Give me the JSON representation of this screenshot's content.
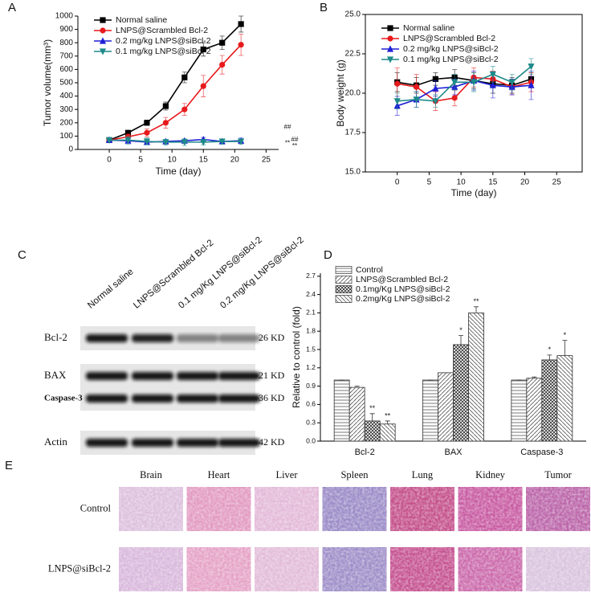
{
  "panel_labels": [
    "A",
    "B",
    "C",
    "D",
    "E"
  ],
  "chart_data": [
    {
      "type": "line",
      "x": [
        0,
        3,
        6,
        9,
        12,
        15,
        18,
        21
      ],
      "xlim": [
        -5,
        27
      ],
      "xticks": [
        0,
        5,
        10,
        15,
        20,
        25
      ],
      "ylim": [
        0,
        1000
      ],
      "yticks": [
        0,
        100,
        200,
        300,
        400,
        500,
        600,
        700,
        800,
        900,
        1000
      ],
      "xlabel": "Time (day)",
      "ylabel": "Tumor volume(mm³)",
      "legend": "upper left",
      "frame": false,
      "series": [
        {
          "name": "Normal saline",
          "color": "#000000",
          "marker": "square",
          "values": [
            70,
            125,
            200,
            325,
            540,
            750,
            800,
            940
          ],
          "errors": [
            5,
            15,
            20,
            30,
            40,
            50,
            50,
            60
          ]
        },
        {
          "name": "LNPS@Scrambled Bcl-2",
          "color": "#e8191c",
          "marker": "circle",
          "values": [
            70,
            95,
            125,
            200,
            300,
            475,
            635,
            785
          ],
          "errors": [
            5,
            20,
            30,
            40,
            45,
            80,
            70,
            80
          ]
        },
        {
          "name": "0.2 mg/kg LNPS@siBcl-2",
          "color": "#1f1fd6",
          "marker": "triangle-up",
          "values": [
            70,
            65,
            55,
            60,
            65,
            75,
            60,
            65
          ],
          "errors": [
            5,
            10,
            10,
            10,
            10,
            15,
            15,
            20
          ]
        },
        {
          "name": "0.1 mg/kg LNPS@siBcl-2",
          "color": "#1e8a8a",
          "marker": "triangle-down",
          "values": [
            70,
            70,
            60,
            55,
            55,
            55,
            60,
            60
          ],
          "errors": [
            5,
            30,
            25,
            20,
            25,
            20,
            20,
            20
          ]
        }
      ],
      "annotations": [
        "##",
        "**",
        "##",
        "**"
      ]
    },
    {
      "type": "line",
      "x": [
        0,
        3,
        6,
        9,
        12,
        15,
        18,
        21
      ],
      "xlim": [
        -5,
        29
      ],
      "xticks": [
        0,
        5,
        10,
        15,
        20,
        25
      ],
      "ylim": [
        15,
        25
      ],
      "yticks": [
        {
          "value": 15,
          "label": "15.0"
        },
        17.5,
        {
          "value": 20,
          "label": "20.0"
        },
        22.5,
        {
          "value": 25,
          "label": "25.0"
        }
      ],
      "xlabel": "Time (day)",
      "ylabel": "Body weight (g)",
      "legend": "upper left",
      "frame": true,
      "series": [
        {
          "name": "Normal saline",
          "color": "#000000",
          "marker": "square",
          "values": [
            20.7,
            20.5,
            20.9,
            21.0,
            20.8,
            20.6,
            20.5,
            20.9
          ],
          "errors": [
            0.6,
            0.5,
            0.4,
            0.5,
            0.5,
            0.6,
            0.5,
            0.4
          ]
        },
        {
          "name": "LNPS@Scrambled Bcl-2",
          "color": "#e8191c",
          "marker": "circle",
          "values": [
            20.6,
            20.4,
            19.5,
            19.7,
            21.0,
            20.9,
            20.4,
            20.7
          ],
          "errors": [
            1.0,
            0.8,
            0.6,
            0.5,
            0.6,
            0.5,
            0.5,
            0.6
          ]
        },
        {
          "name": "0.2 mg/kg LNPS@siBcl-2",
          "color": "#1f1fd6",
          "marker": "triangle-up",
          "values": [
            19.2,
            19.6,
            20.3,
            20.4,
            20.8,
            20.5,
            20.4,
            20.5
          ],
          "errors": [
            0.6,
            0.5,
            0.5,
            0.5,
            0.6,
            0.8,
            0.5,
            0.9
          ]
        },
        {
          "name": "0.1 mg/kg LNPS@siBcl-2",
          "color": "#1e8a8a",
          "marker": "triangle-down",
          "values": [
            19.5,
            19.6,
            19.5,
            20.7,
            20.7,
            21.2,
            20.7,
            21.7
          ],
          "errors": [
            0.5,
            0.5,
            0.4,
            0.5,
            0.6,
            0.5,
            0.5,
            0.5
          ]
        }
      ]
    },
    {
      "type": "bar",
      "categories": [
        "Bcl-2",
        "BAX",
        "Caspase-3"
      ],
      "ylim": [
        0,
        2.75
      ],
      "yticks": [
        {
          "value": 0,
          "label": "0.0"
        },
        0.3,
        0.6,
        0.9,
        1.2,
        1.5,
        1.8,
        2.1,
        2.4,
        2.7
      ],
      "ylabel": "Relative to control (fold)",
      "legend": "upper left",
      "series": [
        {
          "name": "Control",
          "pattern": "horizontal",
          "values": [
            1.0,
            1.0,
            1.0
          ],
          "errors": [
            0,
            0,
            0
          ],
          "significance": [
            null,
            null,
            null
          ]
        },
        {
          "name": "LNPS@Scrambled Bcl-2",
          "pattern": "diagonal",
          "values": [
            0.88,
            1.12,
            1.03
          ],
          "errors": [
            0.02,
            0,
            0.02
          ],
          "significance": [
            null,
            null,
            null
          ]
        },
        {
          "name": "0.1mg/Kg LNPS@siBcl-2",
          "pattern": "crosshatch",
          "values": [
            0.33,
            1.58,
            1.33
          ],
          "errors": [
            0.12,
            0.15,
            0.08
          ],
          "significance": [
            "**",
            "*",
            "*"
          ]
        },
        {
          "name": "0.2mg/Kg LNPS@siBcl-2",
          "pattern": "backdiagonal",
          "values": [
            0.28,
            2.1,
            1.4
          ],
          "errors": [
            0.05,
            0.1,
            0.25
          ],
          "significance": [
            "**",
            "**",
            "*"
          ]
        }
      ]
    }
  ],
  "blot": {
    "lanes": [
      "Normal saline",
      "LNPS@Scrambled Bcl-2",
      "0.1 mg/Kg LNPS@siBcl-2",
      "0.2 mg/Kg LNPS@siBcl-2"
    ],
    "rows": [
      {
        "protein": "Bcl-2",
        "size": "26 KD"
      },
      {
        "protein": "BAX",
        "size": "21 KD"
      },
      {
        "protein": "Caspase-3",
        "size": "36 KD"
      },
      {
        "protein": "Actin",
        "size": "42 KD"
      }
    ]
  },
  "histology": {
    "tissues": [
      "Brain",
      "Heart",
      "Liver",
      "Spleen",
      "Lung",
      "Kidney",
      "Tumor"
    ],
    "groups": [
      "Control",
      "LNPS@siBcl-2"
    ]
  }
}
